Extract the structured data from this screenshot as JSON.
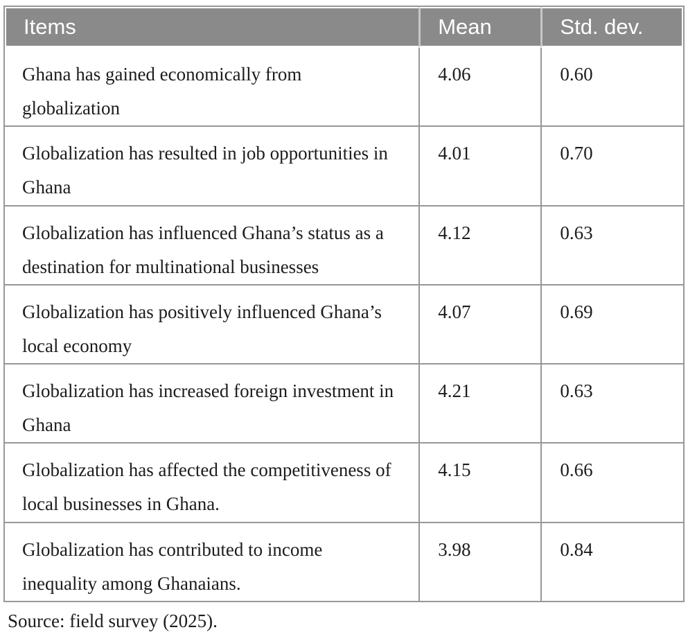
{
  "table": {
    "columns": [
      {
        "label": "Items"
      },
      {
        "label": "Mean"
      },
      {
        "label": "Std. dev."
      }
    ],
    "rows": [
      {
        "item": "Ghana has gained economically from globalization",
        "mean": "4.06",
        "std": "0.60"
      },
      {
        "item": "Globalization has resulted in job opportunities in Ghana",
        "mean": "4.01",
        "std": "0.70"
      },
      {
        "item": "Globalization has influenced Ghana’s status as a destination for multinational businesses",
        "mean": "4.12",
        "std": "0.63"
      },
      {
        "item": "Globalization has positively influenced Ghana’s local economy",
        "mean": "4.07",
        "std": "0.69"
      },
      {
        "item": "Globalization has increased foreign investment in Ghana",
        "mean": "4.21",
        "std": "0.63"
      },
      {
        "item": "Globalization has affected the competitiveness of local businesses in Ghana.",
        "mean": "4.15",
        "std": "0.66"
      },
      {
        "item": "Globalization has contributed to income inequality among Ghanaians.",
        "mean": "3.98",
        "std": "0.84"
      }
    ],
    "source_note": "Source: field survey (2025)."
  },
  "colors": {
    "header_bg": "#8a8a8a",
    "header_text": "#ffffff",
    "grid_border": "#979797",
    "body_text": "#1c1c1c"
  }
}
